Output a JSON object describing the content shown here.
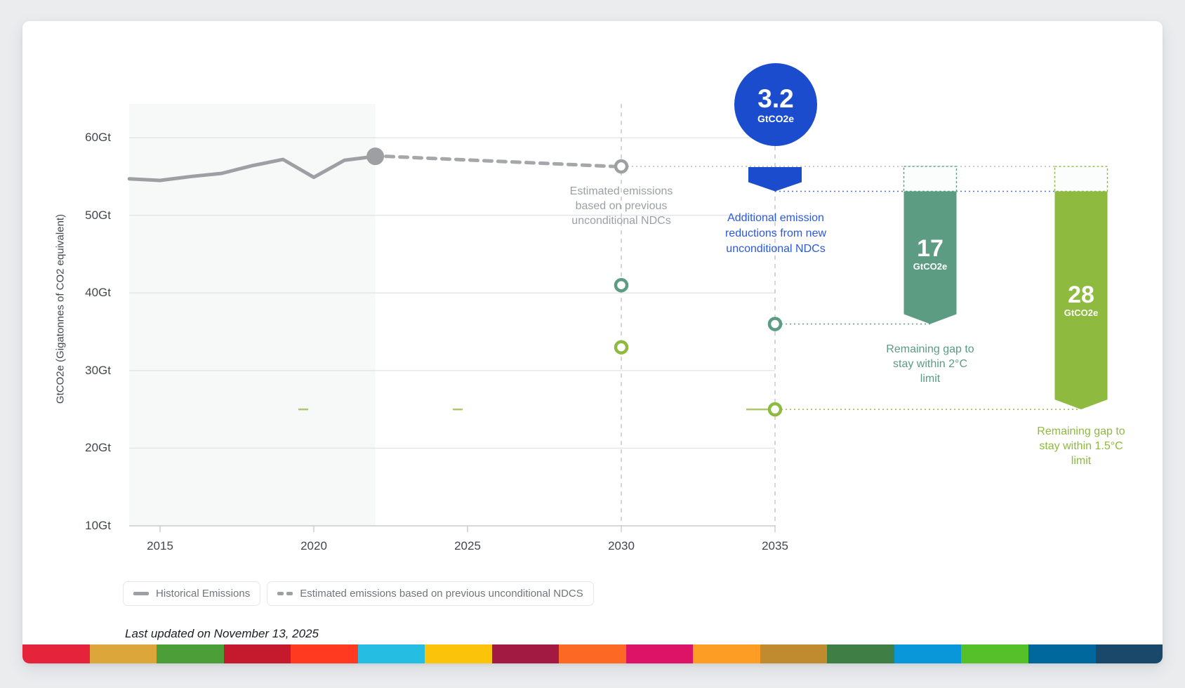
{
  "y_axis": {
    "title": "GtCO2e (Gigatonnes of CO2 equivalent)",
    "ticks": [
      "60Gt",
      "50Gt",
      "40Gt",
      "30Gt",
      "20Gt",
      "10Gt"
    ]
  },
  "x_axis": {
    "ticks": [
      "2015",
      "2020",
      "2025",
      "2030",
      "2035"
    ]
  },
  "annotations_text": {
    "estimated_note": "Estimated emissions\nbased on previous\nunconditional NDCs",
    "blue_note": "Additional emission\nreductions from new\nunconditional NDCs",
    "teal_caption": "Remaining gap to\nstay within 2°C\nlimit",
    "green_caption": "Remaining gap to\nstay within 1.5°C\nlimit"
  },
  "badges": {
    "blue": {
      "value": "3.2",
      "unit": "GtCO2e"
    },
    "teal": {
      "value": "17",
      "unit": "GtCO2e"
    },
    "green": {
      "value": "28",
      "unit": "GtCO2e"
    }
  },
  "legend": {
    "items": [
      {
        "label": "Historical Emissions",
        "style": "solid"
      },
      {
        "label": "Estimated emissions based on previous unconditional NDCS",
        "style": "dashed"
      }
    ]
  },
  "footer": {
    "last_updated": "Last updated on November 13, 2025",
    "stripe_colors": [
      "#e5243b",
      "#dda63a",
      "#4c9f38",
      "#c5192d",
      "#ff3a21",
      "#26bde2",
      "#fcc30b",
      "#a21942",
      "#fd6925",
      "#dd1367",
      "#fd9d24",
      "#bf8b2e",
      "#3f7e44",
      "#0a97d9",
      "#56c02b",
      "#00689d",
      "#19486a"
    ]
  },
  "chart_data": {
    "type": "line",
    "title": "",
    "ylabel": "GtCO2e (Gigatonnes of CO2 equivalent)",
    "xlim": [
      2013.9,
      2035
    ],
    "ylim": [
      10,
      64.5
    ],
    "x_ticks": [
      2015,
      2020,
      2025,
      2030,
      2035
    ],
    "y_ticks": [
      60,
      50,
      40,
      30,
      20,
      10
    ],
    "y_tick_suffix": "Gt",
    "historical_region_years": [
      2014,
      2022
    ],
    "dashed_year_lines": [
      2030,
      2035
    ],
    "series": [
      {
        "name": "Historical Emissions",
        "style": "solid",
        "color": "#9d9fa2",
        "x": [
          2014,
          2015,
          2016,
          2017,
          2018,
          2019,
          2020,
          2021,
          2022
        ],
        "values": [
          54.7,
          54.5,
          55.0,
          55.4,
          56.4,
          57.2,
          54.9,
          57.1,
          57.6
        ]
      },
      {
        "name": "Estimated emissions based on previous unconditional NDCS",
        "style": "dashed",
        "color": "#a5a7aa",
        "x": [
          2022,
          2030
        ],
        "values": [
          57.6,
          56.3
        ]
      }
    ],
    "markers": [
      {
        "name": "estimated-2030",
        "x": 2030,
        "value": 56.3,
        "color": "#9d9fa2"
      },
      {
        "name": "2c-pathway-2030",
        "x": 2030,
        "value": 41,
        "color": "#5b9c82"
      },
      {
        "name": "1p5c-pathway-2030",
        "x": 2030,
        "value": 33,
        "color": "#8dba3f"
      },
      {
        "name": "2c-pathway-2035",
        "x": 2035,
        "value": 36,
        "color": "#5b9c82"
      },
      {
        "name": "1p5c-pathway-2035",
        "x": 2035,
        "value": 25,
        "color": "#8dba3f"
      }
    ],
    "annotations": {
      "previous_ndc_level_2035": 56.3,
      "new_ndc_level_2035": 53.1,
      "additional_reduction_gtco2e": 3.2,
      "gap_2c_gtco2e": 17,
      "gap_1p5c_gtco2e": 28,
      "colors": {
        "blue": "#1b4ccd",
        "blue_dotted": "#4a6fe0",
        "teal": "#5b9c82",
        "green": "#8dba3f",
        "gray": "#9d9fa2"
      }
    }
  }
}
